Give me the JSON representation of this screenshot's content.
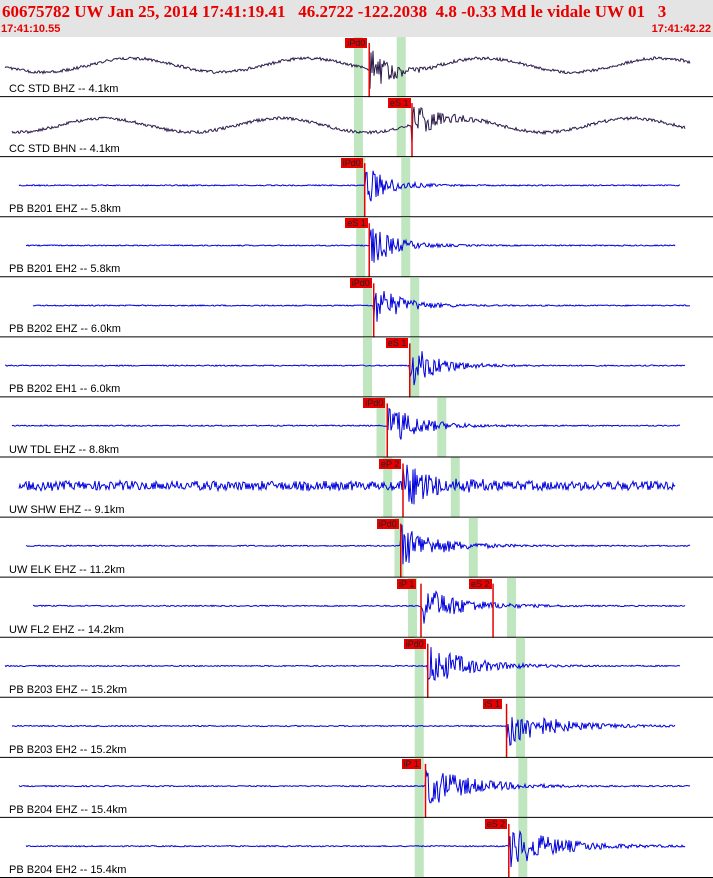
{
  "header": {
    "title": "60675782 UW Jan 25, 2014 17:41:19.41   46.2722 -122.2038  4.8 -0.33 Md le vidale UW 01   3",
    "start_time": "17:41:10.55",
    "end_time": "17:41:42.22"
  },
  "colors": {
    "header_bg": "#e4e4e4",
    "header_text": "#e60000",
    "trace_blue": "#0000dd",
    "trace_dark": "#2a1a4a",
    "pick_red": "#e60000",
    "pick_window_green": "#bfe6bf",
    "divider": "#000000"
  },
  "channels": [
    {
      "label": "CC STD BHZ -- 4.1km",
      "trace": "dark",
      "pick": "iPd0",
      "pick_time": 16.4,
      "window_times": [
        15.9,
        17.8
      ]
    },
    {
      "label": "CC STD BHN -- 4.1km",
      "trace": "dark",
      "pick": "eS 1",
      "pick_time": 18.3,
      "window_times": [
        15.9,
        17.8
      ]
    },
    {
      "label": "PB B201 EHZ -- 5.8km",
      "trace": "blue",
      "pick": "iPd0",
      "pick_time": 16.2,
      "window_times": [
        16.0,
        18.0
      ]
    },
    {
      "label": "PB B201 EH2 -- 5.8km",
      "trace": "blue",
      "pick": "eS 1",
      "pick_time": 16.4,
      "window_times": [
        16.0,
        18.0
      ]
    },
    {
      "label": "PB B202 EHZ -- 6.0km",
      "trace": "blue",
      "pick": "iPd0",
      "pick_time": 16.6,
      "window_times": [
        16.3,
        18.4
      ]
    },
    {
      "label": "PB B202 EH1 -- 6.0km",
      "trace": "blue",
      "pick": "eS 1",
      "pick_time": 18.2,
      "window_times": [
        16.3,
        18.4
      ]
    },
    {
      "label": "UW TDL EHZ -- 8.8km",
      "trace": "blue",
      "pick": "iPd0",
      "pick_time": 17.2,
      "window_times": [
        16.9,
        19.6
      ]
    },
    {
      "label": "UW SHW EHZ -- 9.1km",
      "trace": "blue",
      "pick": "eP 2",
      "pick_time": 17.9,
      "window_times": [
        17.2,
        20.2
      ]
    },
    {
      "label": "UW ELK EHZ -- 11.2km",
      "trace": "blue",
      "pick": "iPd0",
      "pick_time": 17.8,
      "window_times": [
        17.7,
        21.0
      ]
    },
    {
      "label": "UW FL2 EHZ -- 14.2km",
      "trace": "blue",
      "pick": "iP 1",
      "pick_time": 18.7,
      "pick2": "eS 2",
      "pick2_time": 21.9,
      "window_times": [
        18.3,
        22.7
      ]
    },
    {
      "label": "PB B203 EHZ -- 15.2km",
      "trace": "blue",
      "pick": "iPd0",
      "pick_time": 19.0,
      "window_times": [
        18.6,
        23.1
      ]
    },
    {
      "label": "PB B203 EH2 -- 15.2km",
      "trace": "blue",
      "pick": "iS 1",
      "pick_time": 22.5,
      "window_times": [
        18.6,
        23.1
      ]
    },
    {
      "label": "PB B204 EHZ -- 15.4km",
      "trace": "blue",
      "pick": "iP 1",
      "pick_time": 18.9,
      "window_times": [
        18.6,
        23.2
      ]
    },
    {
      "label": "PB B204 EH2 -- 15.4km",
      "trace": "blue",
      "pick": "eS 2",
      "pick_time": 22.6,
      "window_times": [
        18.6,
        23.2
      ]
    }
  ]
}
